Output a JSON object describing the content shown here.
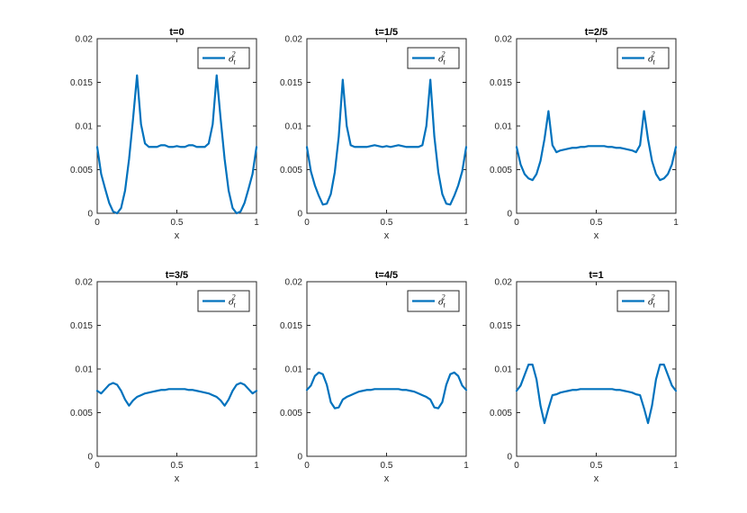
{
  "chart_data": [
    {
      "type": "line",
      "title": "t=0",
      "xlabel": "x",
      "ylabel": "",
      "xlim": [
        0,
        1
      ],
      "ylim": [
        0,
        0.02
      ],
      "xticks": [
        "0",
        "0.5",
        "1"
      ],
      "yticks": [
        "0",
        "0.005",
        "0.01",
        "0.015",
        "0.02"
      ],
      "grid": false,
      "legend_position": "top-right",
      "series": [
        {
          "name": "σ_t^2",
          "color": "#0072BD",
          "x": [
            0,
            0.025,
            0.05,
            0.075,
            0.1,
            0.125,
            0.15,
            0.175,
            0.2,
            0.225,
            0.25,
            0.275,
            0.3,
            0.325,
            0.35,
            0.375,
            0.4,
            0.425,
            0.45,
            0.475,
            0.5,
            0.525,
            0.55,
            0.575,
            0.6,
            0.625,
            0.65,
            0.675,
            0.7,
            0.725,
            0.75,
            0.775,
            0.8,
            0.825,
            0.85,
            0.875,
            0.9,
            0.925,
            0.95,
            0.975,
            1
          ],
          "y": [
            0.0076,
            0.0045,
            0.0028,
            0.0012,
            0.0002,
            0,
            0.0006,
            0.0026,
            0.0062,
            0.0108,
            0.0158,
            0.0102,
            0.008,
            0.0076,
            0.0076,
            0.0076,
            0.0078,
            0.0078,
            0.0076,
            0.0076,
            0.0077,
            0.0076,
            0.0076,
            0.0078,
            0.0078,
            0.0076,
            0.0076,
            0.0076,
            0.008,
            0.0102,
            0.0158,
            0.0108,
            0.0062,
            0.0026,
            0.0006,
            0,
            0.0002,
            0.0012,
            0.0028,
            0.0045,
            0.0076
          ]
        }
      ]
    },
    {
      "type": "line",
      "title": "t=1/5",
      "xlabel": "x",
      "ylabel": "",
      "xlim": [
        0,
        1
      ],
      "ylim": [
        0,
        0.02
      ],
      "xticks": [
        "0",
        "0.5",
        "1"
      ],
      "yticks": [
        "0",
        "0.005",
        "0.01",
        "0.015",
        "0.02"
      ],
      "grid": false,
      "legend_position": "top-right",
      "series": [
        {
          "name": "σ_t^2",
          "color": "#0072BD",
          "x": [
            0,
            0.025,
            0.05,
            0.075,
            0.1,
            0.125,
            0.15,
            0.175,
            0.2,
            0.225,
            0.25,
            0.275,
            0.3,
            0.325,
            0.35,
            0.375,
            0.4,
            0.425,
            0.45,
            0.475,
            0.5,
            0.525,
            0.55,
            0.575,
            0.6,
            0.625,
            0.65,
            0.675,
            0.7,
            0.725,
            0.75,
            0.775,
            0.8,
            0.825,
            0.85,
            0.875,
            0.9,
            0.925,
            0.95,
            0.975,
            1
          ],
          "y": [
            0.0076,
            0.0048,
            0.0032,
            0.002,
            0.001,
            0.0011,
            0.0022,
            0.0047,
            0.0088,
            0.0153,
            0.01,
            0.0078,
            0.0076,
            0.0076,
            0.0076,
            0.0076,
            0.0077,
            0.0078,
            0.0077,
            0.0076,
            0.0077,
            0.0076,
            0.0077,
            0.0078,
            0.0077,
            0.0076,
            0.0076,
            0.0076,
            0.0076,
            0.0078,
            0.01,
            0.0153,
            0.0088,
            0.0047,
            0.0022,
            0.0011,
            0.001,
            0.002,
            0.0032,
            0.0048,
            0.0076
          ]
        }
      ]
    },
    {
      "type": "line",
      "title": "t=2/5",
      "xlabel": "x",
      "ylabel": "",
      "xlim": [
        0,
        1
      ],
      "ylim": [
        0,
        0.02
      ],
      "xticks": [
        "0",
        "0.5",
        "1"
      ],
      "yticks": [
        "0",
        "0.005",
        "0.01",
        "0.015",
        "0.02"
      ],
      "grid": false,
      "legend_position": "top-right",
      "series": [
        {
          "name": "σ_t^2",
          "color": "#0072BD",
          "x": [
            0,
            0.025,
            0.05,
            0.075,
            0.1,
            0.125,
            0.15,
            0.175,
            0.2,
            0.225,
            0.25,
            0.275,
            0.3,
            0.325,
            0.35,
            0.375,
            0.4,
            0.425,
            0.45,
            0.475,
            0.5,
            0.525,
            0.55,
            0.575,
            0.6,
            0.625,
            0.65,
            0.675,
            0.7,
            0.725,
            0.75,
            0.775,
            0.8,
            0.825,
            0.85,
            0.875,
            0.9,
            0.925,
            0.95,
            0.975,
            1
          ],
          "y": [
            0.0076,
            0.0056,
            0.0045,
            0.004,
            0.0038,
            0.0045,
            0.006,
            0.0085,
            0.0117,
            0.0078,
            0.007,
            0.0072,
            0.0073,
            0.0074,
            0.0075,
            0.0075,
            0.0076,
            0.0076,
            0.0077,
            0.0077,
            0.0077,
            0.0077,
            0.0077,
            0.0076,
            0.0076,
            0.0075,
            0.0075,
            0.0074,
            0.0073,
            0.0072,
            0.007,
            0.0078,
            0.0117,
            0.0085,
            0.006,
            0.0045,
            0.0038,
            0.004,
            0.0045,
            0.0056,
            0.0076
          ]
        }
      ]
    },
    {
      "type": "line",
      "title": "t=3/5",
      "xlabel": "x",
      "ylabel": "",
      "xlim": [
        0,
        1
      ],
      "ylim": [
        0,
        0.02
      ],
      "xticks": [
        "0",
        "0.5",
        "1"
      ],
      "yticks": [
        "0",
        "0.005",
        "0.01",
        "0.015",
        "0.02"
      ],
      "grid": false,
      "legend_position": "top-right",
      "series": [
        {
          "name": "σ_t^2",
          "color": "#0072BD",
          "x": [
            0,
            0.025,
            0.05,
            0.075,
            0.1,
            0.125,
            0.15,
            0.175,
            0.2,
            0.225,
            0.25,
            0.275,
            0.3,
            0.325,
            0.35,
            0.375,
            0.4,
            0.425,
            0.45,
            0.475,
            0.5,
            0.525,
            0.55,
            0.575,
            0.6,
            0.625,
            0.65,
            0.675,
            0.7,
            0.725,
            0.75,
            0.775,
            0.8,
            0.825,
            0.85,
            0.875,
            0.9,
            0.925,
            0.95,
            0.975,
            1
          ],
          "y": [
            0.0075,
            0.0072,
            0.0077,
            0.0082,
            0.0084,
            0.0082,
            0.0075,
            0.0065,
            0.0058,
            0.0064,
            0.0068,
            0.007,
            0.0072,
            0.0073,
            0.0074,
            0.0075,
            0.0076,
            0.0076,
            0.0077,
            0.0077,
            0.0077,
            0.0077,
            0.0077,
            0.0076,
            0.0076,
            0.0075,
            0.0074,
            0.0073,
            0.0072,
            0.007,
            0.0068,
            0.0064,
            0.0058,
            0.0065,
            0.0075,
            0.0082,
            0.0084,
            0.0082,
            0.0077,
            0.0072,
            0.0075
          ]
        }
      ]
    },
    {
      "type": "line",
      "title": "t=4/5",
      "xlabel": "x",
      "ylabel": "",
      "xlim": [
        0,
        1
      ],
      "ylim": [
        0,
        0.02
      ],
      "xticks": [
        "0",
        "0.5",
        "1"
      ],
      "yticks": [
        "0",
        "0.005",
        "0.01",
        "0.015",
        "0.02"
      ],
      "grid": false,
      "legend_position": "top-right",
      "series": [
        {
          "name": "σ_t^2",
          "color": "#0072BD",
          "x": [
            0,
            0.025,
            0.05,
            0.075,
            0.1,
            0.125,
            0.15,
            0.175,
            0.2,
            0.225,
            0.25,
            0.275,
            0.3,
            0.325,
            0.35,
            0.375,
            0.4,
            0.425,
            0.45,
            0.475,
            0.5,
            0.525,
            0.55,
            0.575,
            0.6,
            0.625,
            0.65,
            0.675,
            0.7,
            0.725,
            0.75,
            0.775,
            0.8,
            0.825,
            0.85,
            0.875,
            0.9,
            0.925,
            0.95,
            0.975,
            1
          ],
          "y": [
            0.0076,
            0.0081,
            0.0092,
            0.0096,
            0.0094,
            0.0082,
            0.0062,
            0.0055,
            0.0056,
            0.0065,
            0.0068,
            0.007,
            0.0072,
            0.0074,
            0.0075,
            0.0076,
            0.0076,
            0.0077,
            0.0077,
            0.0077,
            0.0077,
            0.0077,
            0.0077,
            0.0077,
            0.0076,
            0.0076,
            0.0075,
            0.0074,
            0.0072,
            0.007,
            0.0068,
            0.0065,
            0.0056,
            0.0055,
            0.0062,
            0.0082,
            0.0094,
            0.0096,
            0.0092,
            0.0081,
            0.0076
          ]
        }
      ]
    },
    {
      "type": "line",
      "title": "t=1",
      "xlabel": "x",
      "ylabel": "",
      "xlim": [
        0,
        1
      ],
      "ylim": [
        0,
        0.02
      ],
      "xticks": [
        "0",
        "0.5",
        "1"
      ],
      "yticks": [
        "0",
        "0.005",
        "0.01",
        "0.015",
        "0.02"
      ],
      "grid": false,
      "legend_position": "top-right",
      "series": [
        {
          "name": "σ_t^2",
          "color": "#0072BD",
          "x": [
            0,
            0.025,
            0.05,
            0.075,
            0.1,
            0.125,
            0.15,
            0.175,
            0.2,
            0.225,
            0.25,
            0.275,
            0.3,
            0.325,
            0.35,
            0.375,
            0.4,
            0.425,
            0.45,
            0.475,
            0.5,
            0.525,
            0.55,
            0.575,
            0.6,
            0.625,
            0.65,
            0.675,
            0.7,
            0.725,
            0.75,
            0.775,
            0.8,
            0.825,
            0.85,
            0.875,
            0.9,
            0.925,
            0.95,
            0.975,
            1
          ],
          "y": [
            0.0075,
            0.0081,
            0.0093,
            0.0105,
            0.0105,
            0.0088,
            0.0058,
            0.0038,
            0.0055,
            0.007,
            0.0071,
            0.0073,
            0.0074,
            0.0075,
            0.0076,
            0.0076,
            0.0077,
            0.0077,
            0.0077,
            0.0077,
            0.0077,
            0.0077,
            0.0077,
            0.0077,
            0.0077,
            0.0076,
            0.0076,
            0.0075,
            0.0074,
            0.0073,
            0.0071,
            0.007,
            0.0055,
            0.0038,
            0.0058,
            0.0088,
            0.0105,
            0.0105,
            0.0093,
            0.0081,
            0.0075
          ]
        }
      ]
    }
  ]
}
